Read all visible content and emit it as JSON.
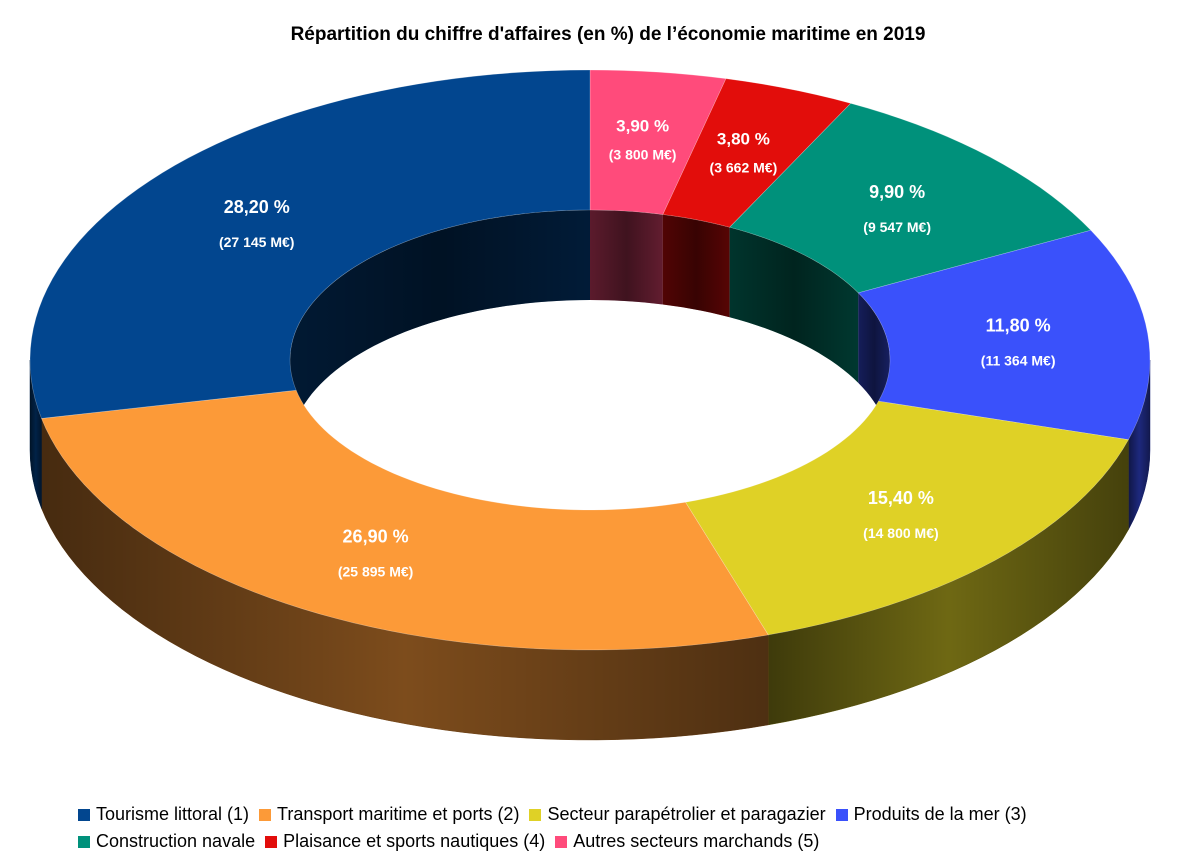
{
  "chart_data": {
    "type": "pie",
    "variant": "3d-donut",
    "title": "Répartition du chiffre d'affaires (en %) de l’économie maritime en 2019",
    "legend_position": "bottom",
    "series": [
      {
        "name": "Tourisme littoral (1)",
        "pct": 28.2,
        "pct_label": "28,20 %",
        "amount_label": "(27 145 M€)",
        "color": "#02468f"
      },
      {
        "name": "Transport maritime et ports (2)",
        "pct": 26.9,
        "pct_label": "26,90 %",
        "amount_label": "(25 895 M€)",
        "color": "#fc9a38"
      },
      {
        "name": "Secteur parapétrolier et paragazier",
        "pct": 15.4,
        "pct_label": "15,40 %",
        "amount_label": "(14 800 M€)",
        "color": "#dfd126"
      },
      {
        "name": "Produits de la mer (3)",
        "pct": 11.8,
        "pct_label": "11,80 %",
        "amount_label": "(11 364 M€)",
        "color": "#3a51fb"
      },
      {
        "name": "Construction navale",
        "pct": 9.9,
        "pct_label": "9,90 %",
        "amount_label": "(9 547 M€)",
        "color": "#00917b"
      },
      {
        "name": "Plaisance et sports nautiques (4)",
        "pct": 3.8,
        "pct_label": "3,80 %",
        "amount_label": "(3 662 M€)",
        "color": "#e20d0b"
      },
      {
        "name": "Autres secteurs marchands (5)",
        "pct": 3.9,
        "pct_label": "3,90 %",
        "amount_label": "(3 800 M€)",
        "color": "#ff4b7b"
      }
    ],
    "draw_order_clockwise_from_top": [
      6,
      5,
      4,
      3,
      2,
      1,
      0
    ],
    "legend_rows": [
      [
        0,
        1,
        2,
        3
      ],
      [
        4,
        5,
        6
      ]
    ]
  }
}
